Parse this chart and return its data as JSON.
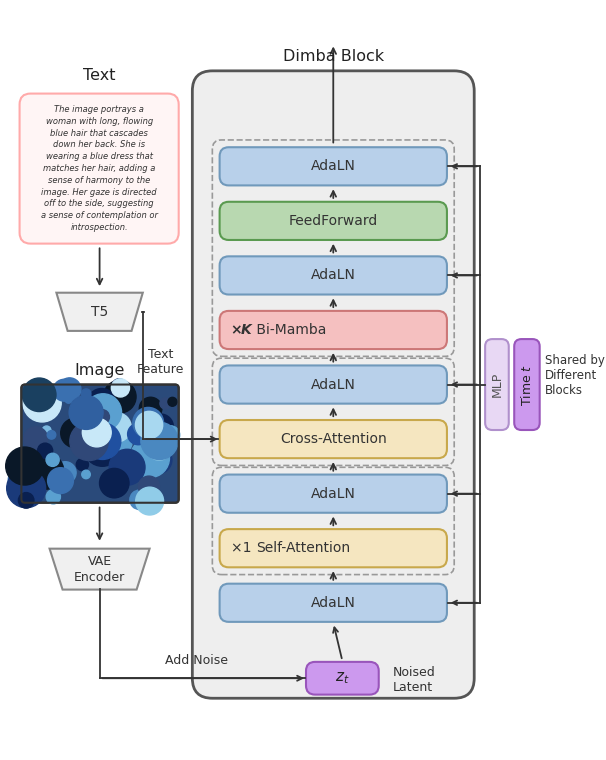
{
  "title": "Dimba Block",
  "bg_color": "#ffffff",
  "block_data": [
    {
      "label": "AdaLN",
      "color": "#b8d0ea",
      "border": "#7099bb",
      "prefix": "",
      "bold_prefix": false
    },
    {
      "label": "Self-Attention",
      "color": "#f5e6c0",
      "border": "#c8a84b",
      "prefix": "×1 ",
      "bold_prefix": false
    },
    {
      "label": "AdaLN",
      "color": "#b8d0ea",
      "border": "#7099bb",
      "prefix": "",
      "bold_prefix": false
    },
    {
      "label": "Cross-Attention",
      "color": "#f5e6c0",
      "border": "#c8a84b",
      "prefix": "",
      "bold_prefix": false
    },
    {
      "label": "AdaLN",
      "color": "#b8d0ea",
      "border": "#7099bb",
      "prefix": "",
      "bold_prefix": false
    },
    {
      "label": "Bi-Mamba",
      "color": "#f5c0c0",
      "border": "#cc7777",
      "prefix": "×K ",
      "bold_prefix": true
    },
    {
      "label": "AdaLN",
      "color": "#b8d0ea",
      "border": "#7099bb",
      "prefix": "",
      "bold_prefix": false
    },
    {
      "label": "FeedForward",
      "color": "#b8d8b0",
      "border": "#5a9a50",
      "prefix": "",
      "bold_prefix": false
    },
    {
      "label": "AdaLN",
      "color": "#b8d0ea",
      "border": "#7099bb",
      "prefix": "",
      "bold_prefix": false
    }
  ],
  "text_italic": "The image portrays a\nwoman with long, flowing\nblue hair that cascades\ndown her back. She is\nwearing a blue dress that\nmatches her hair, adding a\nsense of harmony to the\nimage. Her gaze is directed\noff to the side, suggesting\na sense of contemplation or\nintrospection.",
  "text_box_bg": "#fff5f5",
  "text_box_border": "#ffaaaa",
  "mlp_bg": "#e8d8f4",
  "mlp_border": "#b090cc",
  "time_bg": "#cc99ee",
  "time_border": "#9955bb",
  "zt_bg": "#cc99ee",
  "zt_border": "#9955bb",
  "dimba_bg": "#eeeeee",
  "dimba_border": "#555555",
  "t5_bg": "#f0f0f0",
  "t5_border": "#888888",
  "vae_bg": "#f0f0f0",
  "vae_border": "#888888",
  "arrow_color": "#333333",
  "dash_color": "#999999"
}
